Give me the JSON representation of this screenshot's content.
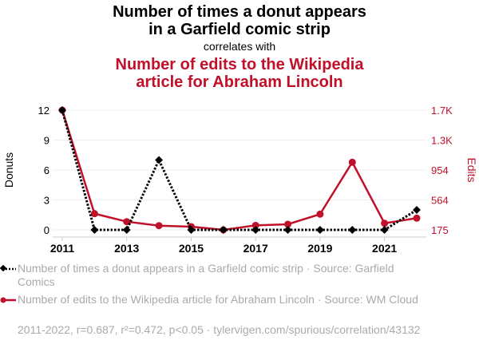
{
  "title": {
    "line1": "Number of times a donut appears",
    "line2": "in a Garfield comic strip",
    "correlates": "correlates with",
    "line3": "Number of edits to the Wikipedia",
    "line4": "article for Abraham Lincoln"
  },
  "legend": [
    {
      "label": "Number of times a donut appears in a Garfield comic strip · Source: Garfield Comics"
    },
    {
      "label": "Number of edits to the Wikipedia article for Abraham Lincoln · Source: WM Cloud"
    }
  ],
  "footer": "2011-2022, r=0.687, r²=0.472, p<0.05 · tylervigen.com/spurious/correlation/43132",
  "colors": {
    "donuts": "#000000",
    "edits": "#c0102a",
    "grid": "#eeeeee",
    "muted": "#aaaaaa"
  },
  "chart_data": {
    "type": "line",
    "x": [
      2011,
      2012,
      2013,
      2014,
      2015,
      2016,
      2017,
      2018,
      2019,
      2020,
      2021,
      2022
    ],
    "x_ticks": [
      "2011",
      "2013",
      "2015",
      "2017",
      "2019",
      "2021"
    ],
    "series": [
      {
        "name": "Donuts",
        "axis": "left",
        "values": [
          12,
          0,
          0,
          7,
          0,
          0,
          0,
          0,
          0,
          0,
          0,
          2
        ]
      },
      {
        "name": "Edits",
        "axis": "right",
        "values": [
          1733,
          386,
          282,
          230,
          217,
          175,
          234,
          248,
          380,
          1055,
          261,
          328
        ]
      }
    ],
    "ylabel_left": "Donuts",
    "ylabel_right": "Edits",
    "ylim_left": [
      0,
      12
    ],
    "yticks_left": [
      "0",
      "3",
      "6",
      "9",
      "12"
    ],
    "ylim_right": [
      175,
      1733
    ],
    "yticks_right": [
      "175",
      "564",
      "954",
      "1.3K",
      "1.7K"
    ],
    "grid": true
  }
}
